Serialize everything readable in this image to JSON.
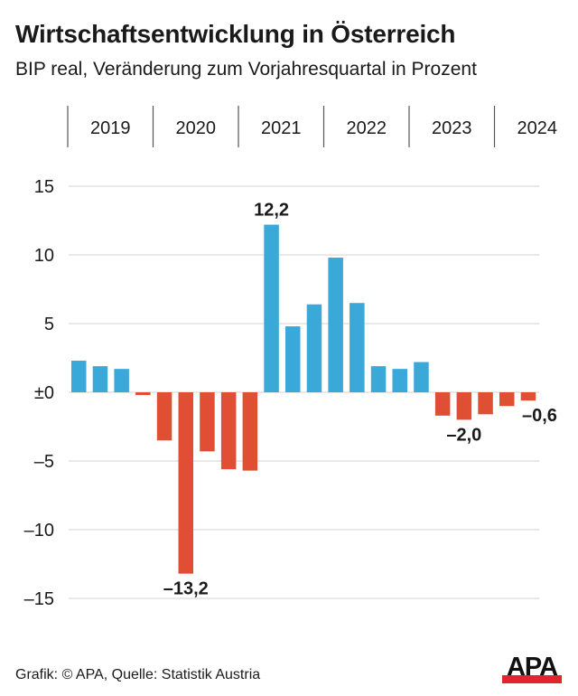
{
  "header": {
    "title": "Wirtschaftsentwicklung in Österreich",
    "subtitle": "BIP real, Veränderung zum Vorjahresquartal in Prozent"
  },
  "footer": {
    "credit": "Grafik: © APA, Quelle: Statistik Austria",
    "logo_text": "APA"
  },
  "colors": {
    "positive": "#3aa8d8",
    "negative": "#e04f33",
    "grid": "#dcdcdc",
    "divider": "#555555",
    "logo_red": "#e3242b"
  },
  "chart_data": {
    "type": "bar",
    "title": "Wirtschaftsentwicklung in Österreich",
    "subtitle": "BIP real, Veränderung zum Vorjahresquartal in Prozent",
    "xlabel": "",
    "ylabel": "",
    "ylim": [
      -15,
      15
    ],
    "yticks": [
      15,
      10,
      5,
      0,
      -5,
      -10,
      -15
    ],
    "ytick_labels": [
      "15",
      "10",
      "5",
      "±0",
      "–5",
      "–10",
      "–15"
    ],
    "grid": true,
    "years": [
      "2019",
      "2020",
      "2021",
      "2022",
      "2023",
      "2024"
    ],
    "quarters_per_year": 4,
    "categories": [
      "Q1 2019",
      "Q2 2019",
      "Q3 2019",
      "Q4 2019",
      "Q1 2020",
      "Q2 2020",
      "Q3 2020",
      "Q4 2020",
      "Q1 2021",
      "Q2 2021",
      "Q3 2021",
      "Q4 2021",
      "Q1 2022",
      "Q2 2022",
      "Q3 2022",
      "Q4 2022",
      "Q1 2023",
      "Q2 2023",
      "Q3 2023",
      "Q4 2023",
      "Q1 2024",
      "Q2 2024"
    ],
    "values": [
      2.3,
      1.9,
      1.7,
      -0.2,
      -3.5,
      -13.2,
      -4.3,
      -5.6,
      -5.7,
      12.2,
      4.8,
      6.4,
      9.8,
      6.5,
      1.9,
      1.7,
      2.2,
      -1.7,
      -2.0,
      -1.6,
      -1.0,
      -0.6
    ],
    "annotations": [
      {
        "index": 5,
        "text": "–13,2"
      },
      {
        "index": 9,
        "text": "12,2"
      },
      {
        "index": 18,
        "text": "–2,0"
      },
      {
        "index": 21,
        "text": "–0,6"
      }
    ]
  }
}
